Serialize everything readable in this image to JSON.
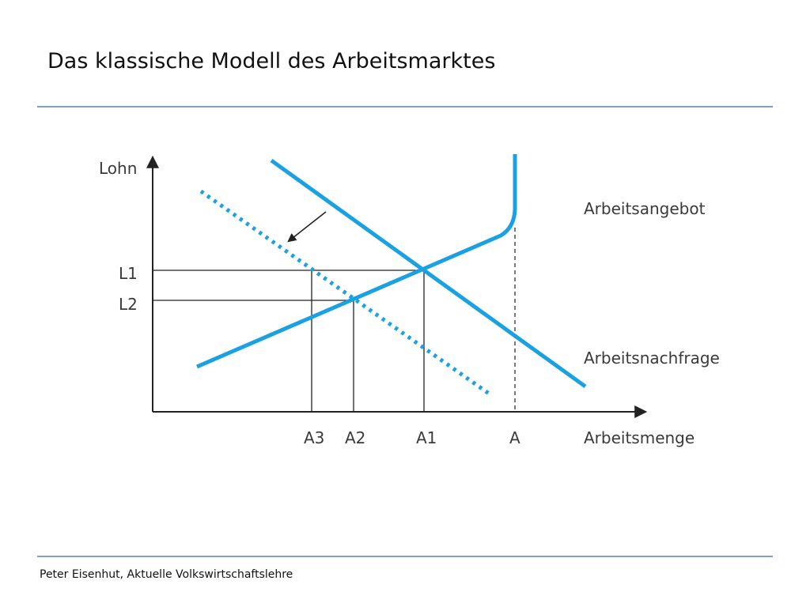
{
  "title": "Das klassische Modell des Arbeitsmarktes",
  "footer": "Peter Eisenhut, Aktuelle Volkswirtschaftslehre",
  "diagram": {
    "y_axis_label": "Lohn",
    "x_axis_label": "Arbeitsmenge",
    "supply_label": "Arbeitsangebot",
    "demand_label": "Arbeitsnachfrage",
    "wage_ticks": [
      "L1",
      "L2"
    ],
    "quantity_ticks": [
      "A3",
      "A2",
      "A1",
      "A"
    ],
    "curve_color": "#1ba1e2",
    "line_color": "#222222"
  }
}
